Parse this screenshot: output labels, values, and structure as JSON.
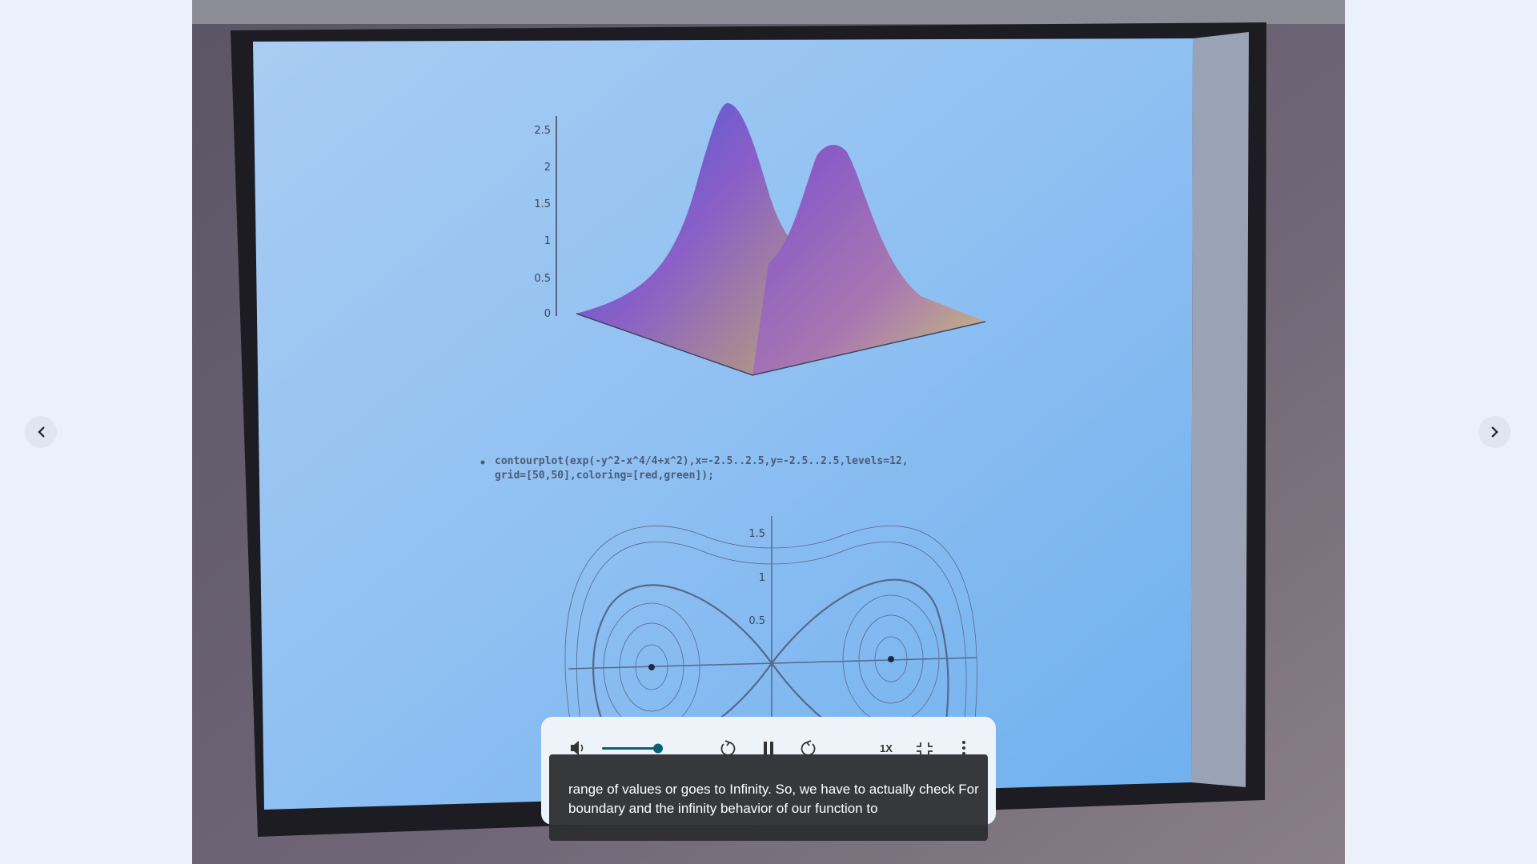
{
  "video": {
    "slide": {
      "z_axis_labels": [
        "2.5",
        "2",
        "1.5",
        "1",
        "0.5",
        "0"
      ],
      "command": [
        "contourplot(exp(-y^2-x^4/4+x^2),x=-2.5..2.5,y=-2.5..2.5,levels=12,",
        "grid=[50,50],coloring=[red,green]);"
      ],
      "contour_axis_labels": [
        "1.5",
        "1",
        "0.5"
      ]
    }
  },
  "player": {
    "speed": "1X",
    "caption": [
      "range of values or goes to Infinity. So, we have to actually check For",
      "boundary and the infinity behavior of our function to"
    ]
  }
}
